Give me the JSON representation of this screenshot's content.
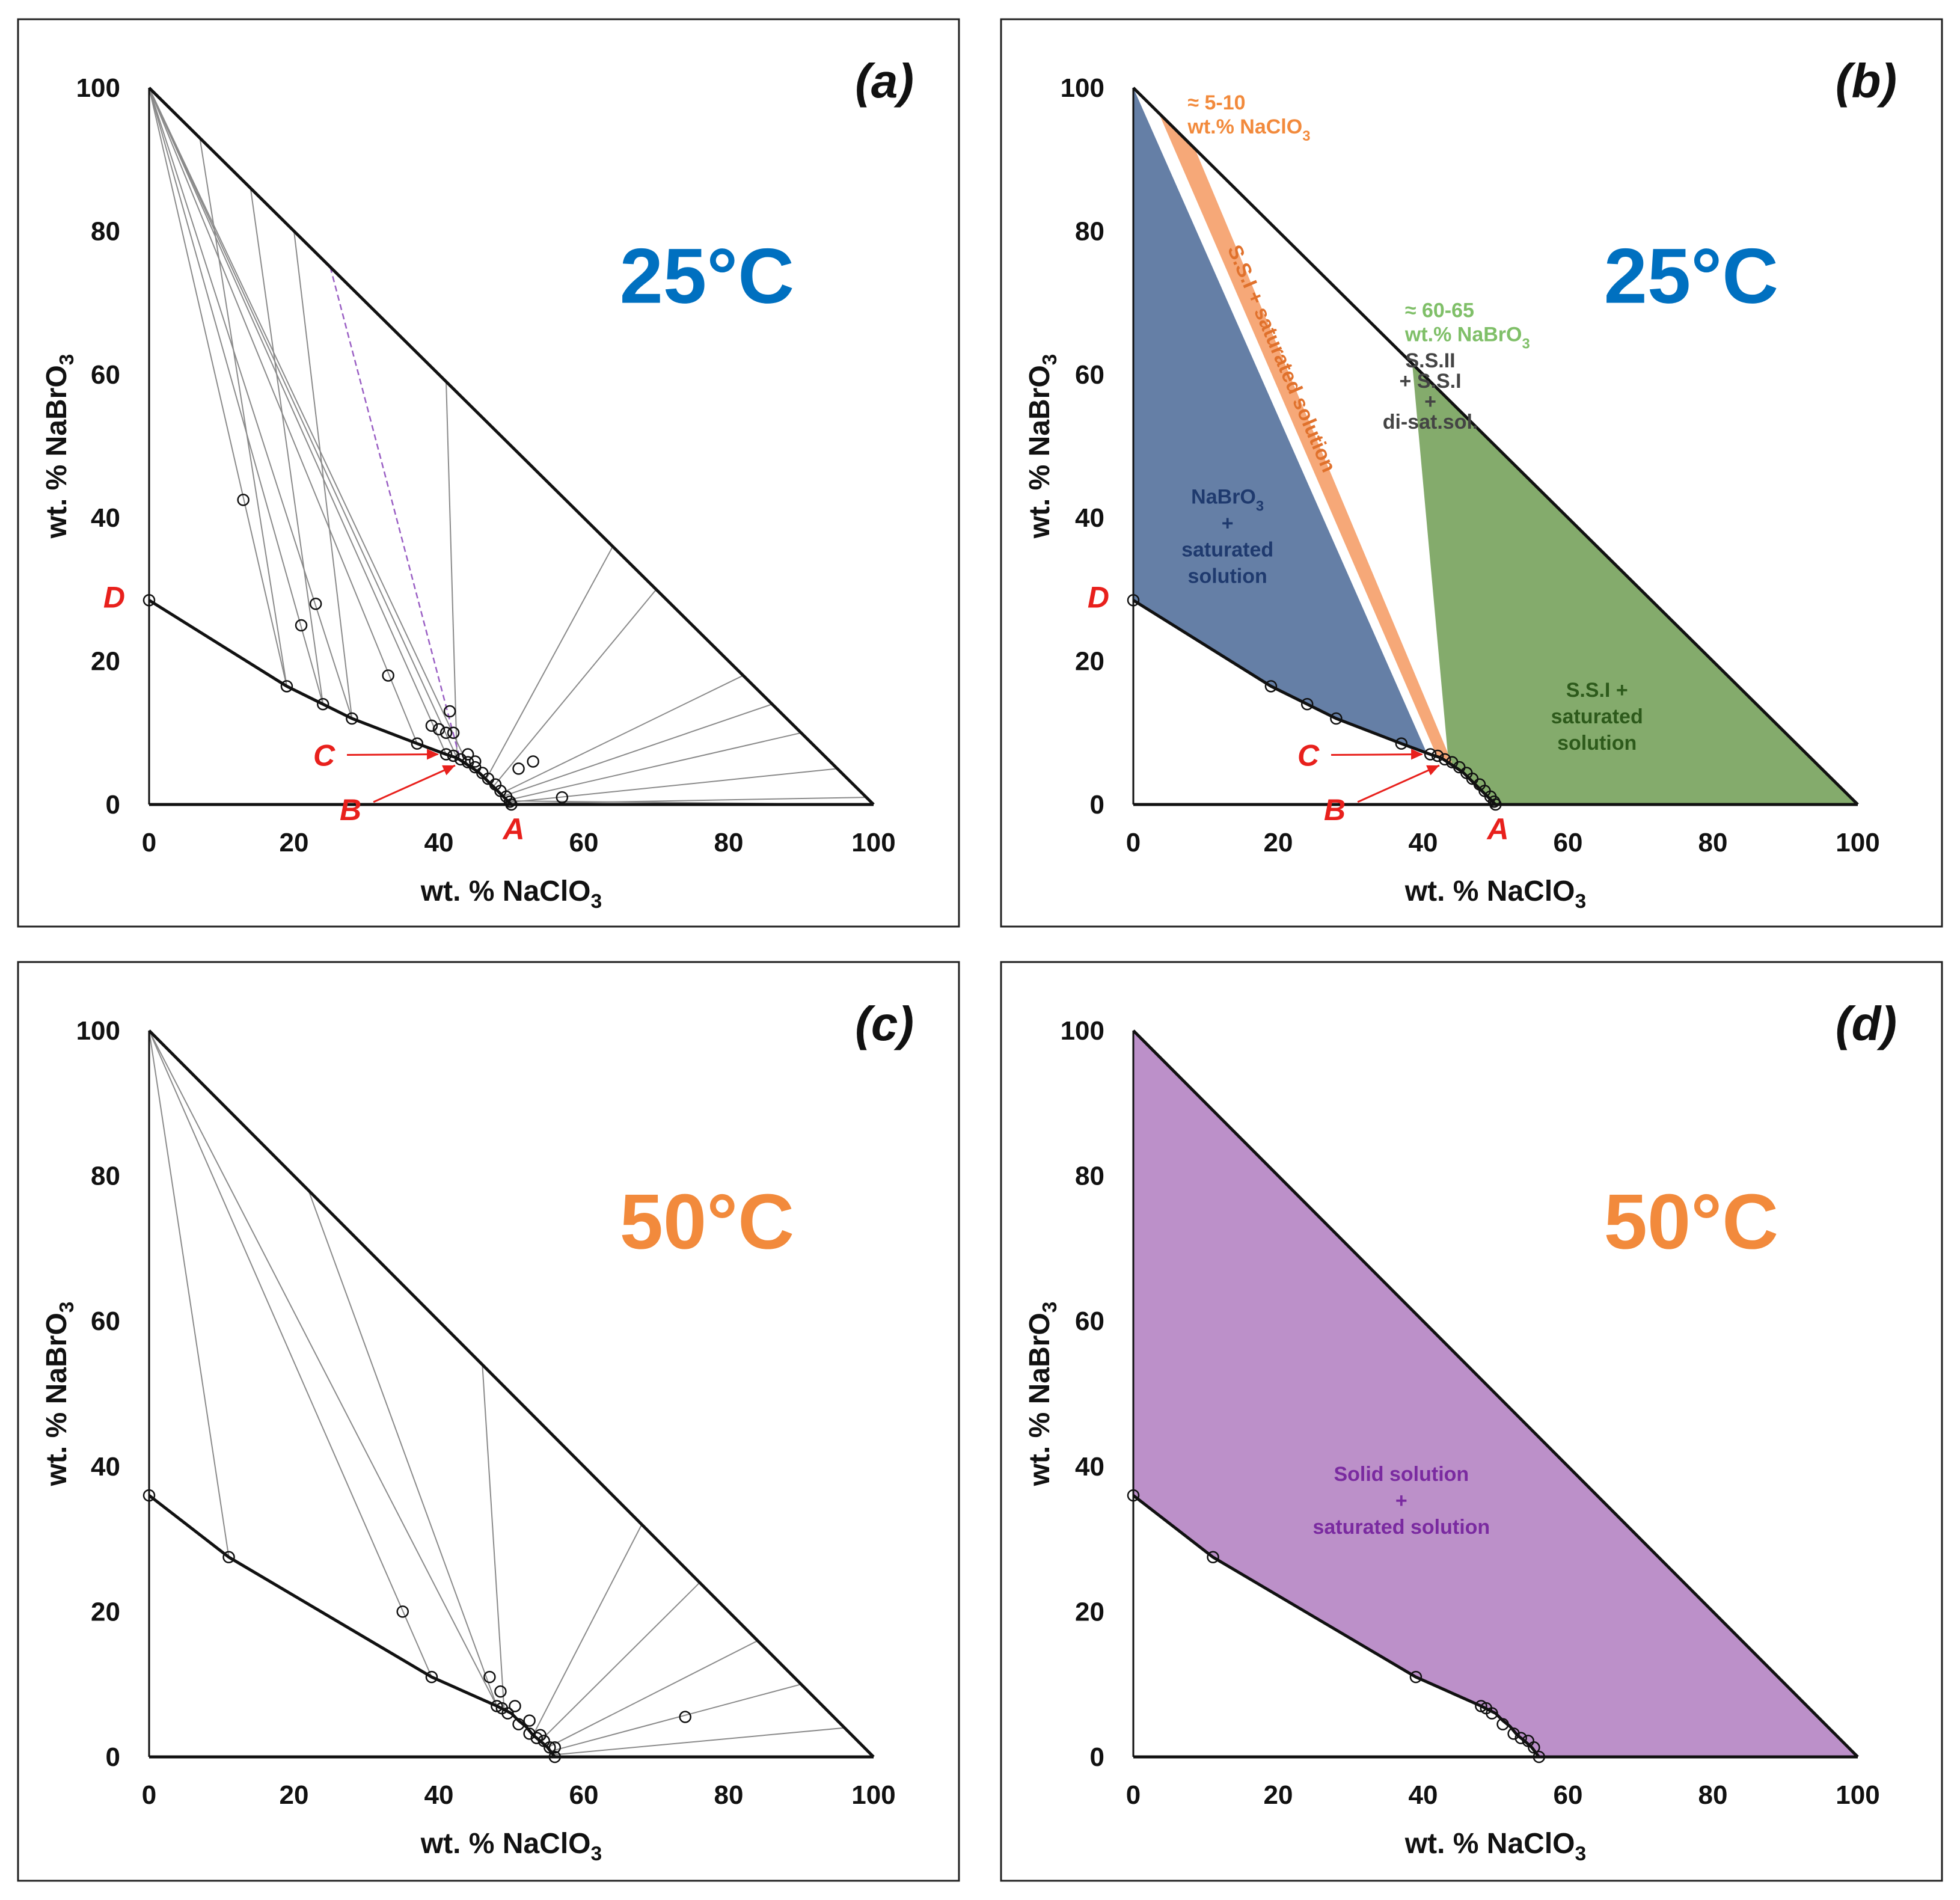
{
  "colors": {
    "blue_temp": "#0070c0",
    "orange_temp": "#f28a3c",
    "navy_region": "#4a6896",
    "orange_band": "#f6a878",
    "green_region": "#6e9c52",
    "purple_region": "#b07dc0",
    "purple_tie": "#9a5fc4",
    "red_label": "#e8201c",
    "green_note": "#7fbf68",
    "orange_note": "#f28a3c",
    "navy_text": "#1f3a6e",
    "green_text": "#2d5a1b",
    "purple_text": "#7a2aa0"
  },
  "chart_data": [
    {
      "id": "a",
      "type": "scatter",
      "tag": "(a)",
      "temperature": "25°C",
      "xlabel": "wt. % NaClO",
      "xlabel_sub": "3",
      "ylabel": "wt. % NaBrO",
      "ylabel_sub": "3",
      "xlim": [
        0,
        100
      ],
      "ylim": [
        0,
        100
      ],
      "xticks": [
        "0",
        "20",
        "40",
        "60",
        "80",
        "100"
      ],
      "yticks": [
        "0",
        "20",
        "40",
        "60",
        "80",
        "100"
      ],
      "solubility_curve": [
        [
          0,
          28.5
        ],
        [
          19,
          16.5
        ],
        [
          24,
          14
        ],
        [
          28,
          12
        ],
        [
          37,
          8.5
        ],
        [
          41,
          7
        ],
        [
          42.5,
          6.5
        ],
        [
          44,
          5.5
        ],
        [
          45.5,
          4.5
        ],
        [
          46.5,
          3.5
        ],
        [
          47.5,
          2.5
        ],
        [
          48.5,
          1.5
        ],
        [
          49.5,
          0.5
        ],
        [
          50,
          0
        ]
      ],
      "curve_points": [
        [
          0,
          28.5
        ],
        [
          19,
          16.5
        ],
        [
          24,
          14
        ],
        [
          28,
          12
        ],
        [
          37,
          8.5
        ],
        [
          41,
          7
        ],
        [
          42,
          6.8
        ],
        [
          43,
          6.3
        ],
        [
          44,
          5.9
        ],
        [
          45,
          5.2
        ],
        [
          46,
          4.4
        ],
        [
          46.8,
          3.6
        ],
        [
          47.8,
          2.8
        ],
        [
          48.5,
          1.9
        ],
        [
          49.3,
          1.1
        ],
        [
          49.8,
          0.4
        ],
        [
          50,
          0
        ]
      ],
      "solid_points": [
        [
          13,
          42.5
        ],
        [
          21,
          25
        ],
        [
          23,
          28
        ],
        [
          33,
          18
        ],
        [
          39,
          11
        ],
        [
          40,
          10.5
        ],
        [
          41,
          10
        ],
        [
          41.5,
          13
        ],
        [
          42,
          10
        ],
        [
          44,
          7
        ],
        [
          45,
          6
        ],
        [
          51,
          5
        ],
        [
          53,
          6
        ],
        [
          57,
          1
        ]
      ],
      "tie_lines": [
        [
          [
            0,
            100
          ],
          [
            19,
            16.5
          ]
        ],
        [
          [
            0,
            100
          ],
          [
            24,
            14
          ]
        ],
        [
          [
            0,
            100
          ],
          [
            28,
            12
          ]
        ],
        [
          [
            0,
            100
          ],
          [
            37,
            8.5
          ]
        ],
        [
          [
            0,
            100
          ],
          [
            41,
            7
          ]
        ],
        [
          [
            0,
            100
          ],
          [
            42.5,
            6.5
          ]
        ],
        [
          [
            0,
            100
          ],
          [
            44,
            5.5
          ]
        ],
        [
          [
            7,
            93
          ],
          [
            19,
            16.5
          ]
        ],
        [
          [
            14,
            86
          ],
          [
            24,
            14
          ]
        ],
        [
          [
            20,
            80
          ],
          [
            28,
            12
          ]
        ],
        [
          [
            41,
            59
          ],
          [
            42.5,
            6.5
          ]
        ],
        [
          [
            64,
            36
          ],
          [
            46.5,
            3.5
          ]
        ],
        [
          [
            70,
            30
          ],
          [
            47.5,
            2.5
          ]
        ],
        [
          [
            82,
            18
          ],
          [
            48.5,
            1.5
          ]
        ],
        [
          [
            86,
            14
          ],
          [
            49,
            1.2
          ]
        ],
        [
          [
            90,
            10
          ],
          [
            49.5,
            0.6
          ]
        ],
        [
          [
            95,
            5
          ],
          [
            49.8,
            0.3
          ]
        ],
        [
          [
            99,
            1
          ],
          [
            50,
            0.1
          ]
        ],
        [
          [
            100,
            0
          ],
          [
            49.8,
            0.5
          ]
        ]
      ],
      "special_tie": [
        [
          25,
          75
        ],
        [
          43,
          6
        ]
      ],
      "labels": [
        {
          "text": "D",
          "at": [
            0,
            28.5
          ],
          "pos": "left"
        },
        {
          "text": "C",
          "at": [
            41,
            7
          ],
          "pos": "arrow-left"
        },
        {
          "text": "B",
          "at": [
            43,
            5.8
          ],
          "pos": "arrow-below"
        },
        {
          "text": "A",
          "at": [
            50,
            0
          ],
          "pos": "below"
        }
      ]
    },
    {
      "id": "b",
      "type": "scatter",
      "tag": "(b)",
      "temperature": "25°C",
      "xlabel": "wt. % NaClO",
      "xlabel_sub": "3",
      "ylabel": "wt. % NaBrO",
      "ylabel_sub": "3",
      "xlim": [
        0,
        100
      ],
      "ylim": [
        0,
        100
      ],
      "xticks": [
        "0",
        "20",
        "40",
        "60",
        "80",
        "100"
      ],
      "yticks": [
        "0",
        "20",
        "40",
        "60",
        "80",
        "100"
      ],
      "solubility_curve": [
        [
          0,
          28.5
        ],
        [
          19,
          16.5
        ],
        [
          24,
          14
        ],
        [
          28,
          12
        ],
        [
          37,
          8.5
        ],
        [
          41,
          7
        ],
        [
          42.5,
          6.5
        ],
        [
          44,
          5.5
        ],
        [
          45.5,
          4.5
        ],
        [
          46.5,
          3.5
        ],
        [
          47.5,
          2.5
        ],
        [
          48.5,
          1.5
        ],
        [
          49.5,
          0.5
        ],
        [
          50,
          0
        ]
      ],
      "curve_points": [
        [
          0,
          28.5
        ],
        [
          19,
          16.5
        ],
        [
          24,
          14
        ],
        [
          28,
          12
        ],
        [
          37,
          8.5
        ],
        [
          41,
          7
        ],
        [
          42,
          6.8
        ],
        [
          43,
          6.3
        ],
        [
          44,
          5.9
        ],
        [
          45,
          5.2
        ],
        [
          46,
          4.4
        ],
        [
          46.8,
          3.6
        ],
        [
          47.8,
          2.8
        ],
        [
          48.5,
          1.9
        ],
        [
          49.3,
          1.1
        ],
        [
          49.8,
          0.4
        ],
        [
          50,
          0
        ]
      ],
      "regions": [
        {
          "name": "NaBrO3 + saturated solution",
          "lines": [
            "NaBrO",
            "+",
            "saturated",
            "solution"
          ],
          "sub_on_first": "3",
          "color_key": "navy_region",
          "text_color_key": "navy_text",
          "polygon": [
            [
              0,
              100
            ],
            [
              0,
              28.5
            ],
            [
              19,
              16.5
            ],
            [
              24,
              14
            ],
            [
              28,
              12
            ],
            [
              37,
              8.5
            ],
            [
              40.5,
              7.2
            ]
          ],
          "label_at": [
            13,
            42
          ]
        },
        {
          "name": "S.S.I + saturated solution",
          "lines": [
            "S.S.I +",
            "saturated",
            "solution"
          ],
          "color_key": "green_region",
          "text_color_key": "green_text",
          "polygon": [
            [
              38.5,
              61.5
            ],
            [
              100,
              0
            ],
            [
              50,
              0
            ],
            [
              49.5,
              0.5
            ],
            [
              48.5,
              1.5
            ],
            [
              47.5,
              2.5
            ],
            [
              46.5,
              3.5
            ],
            [
              45.5,
              4.5
            ],
            [
              44,
              5.5
            ],
            [
              43.5,
              6
            ]
          ],
          "label_at": [
            64,
            15
          ]
        }
      ],
      "band": {
        "name": "S.S.I + saturated solution",
        "label": "S.S.I + saturated solution",
        "color_key": "orange_band",
        "polygon": [
          [
            3.5,
            96.5
          ],
          [
            8.5,
            91.5
          ],
          [
            44,
            5.8
          ],
          [
            42,
            6.5
          ]
        ]
      },
      "middle_region_label": [
        "S.S.II",
        "+ S.S.I",
        "+",
        "di-sat.sol."
      ],
      "notes": [
        {
          "lines": [
            "≈ 5-10",
            "wt.% NaClO"
          ],
          "sub": "3",
          "color_key": "orange_note",
          "at": [
            7.5,
            97
          ]
        },
        {
          "lines": [
            "≈ 60-65",
            "wt.% NaBrO"
          ],
          "sub": "3",
          "color_key": "green_note",
          "at": [
            37.5,
            68
          ]
        }
      ],
      "labels": [
        {
          "text": "D",
          "at": [
            0,
            28.5
          ],
          "pos": "left"
        },
        {
          "text": "C",
          "at": [
            41,
            7
          ],
          "pos": "arrow-left"
        },
        {
          "text": "B",
          "at": [
            43,
            5.8
          ],
          "pos": "arrow-below"
        },
        {
          "text": "A",
          "at": [
            50,
            0
          ],
          "pos": "below"
        }
      ]
    },
    {
      "id": "c",
      "type": "scatter",
      "tag": "(c)",
      "temperature": "50°C",
      "xlabel": "wt. % NaClO",
      "xlabel_sub": "3",
      "ylabel": "wt. % NaBrO",
      "ylabel_sub": "3",
      "xlim": [
        0,
        100
      ],
      "ylim": [
        0,
        100
      ],
      "xticks": [
        "0",
        "20",
        "40",
        "60",
        "80",
        "100"
      ],
      "yticks": [
        "0",
        "20",
        "40",
        "60",
        "80",
        "100"
      ],
      "solubility_curve": [
        [
          0,
          36
        ],
        [
          11,
          27.5
        ],
        [
          39,
          11
        ],
        [
          48,
          7
        ],
        [
          49,
          6.5
        ],
        [
          50,
          6
        ],
        [
          51,
          5
        ],
        [
          52,
          4.2
        ],
        [
          53,
          3
        ],
        [
          54,
          2.2
        ],
        [
          55,
          1.3
        ],
        [
          56,
          0
        ]
      ],
      "curve_points": [
        [
          0,
          36
        ],
        [
          11,
          27.5
        ],
        [
          39,
          11
        ],
        [
          48,
          7
        ],
        [
          48.7,
          6.7
        ],
        [
          49.5,
          6
        ],
        [
          51,
          4.5
        ],
        [
          52.5,
          3.2
        ],
        [
          53.5,
          2.6
        ],
        [
          54.5,
          2.2
        ],
        [
          55.3,
          1.3
        ],
        [
          56,
          0
        ]
      ],
      "solid_points": [
        [
          35,
          20
        ],
        [
          47,
          11
        ],
        [
          48.5,
          9
        ],
        [
          50.5,
          7
        ],
        [
          52.5,
          5
        ],
        [
          54,
          3
        ],
        [
          56,
          1.3
        ],
        [
          74,
          5.5
        ]
      ],
      "tie_lines": [
        [
          [
            0,
            100
          ],
          [
            11,
            27.5
          ]
        ],
        [
          [
            0,
            100
          ],
          [
            39,
            11
          ]
        ],
        [
          [
            0,
            100
          ],
          [
            48,
            7
          ]
        ],
        [
          [
            22,
            78
          ],
          [
            48,
            7
          ]
        ],
        [
          [
            46,
            54
          ],
          [
            49,
            6.5
          ]
        ],
        [
          [
            68,
            32
          ],
          [
            53,
            3
          ]
        ],
        [
          [
            76,
            24
          ],
          [
            54,
            2.2
          ]
        ],
        [
          [
            84,
            16
          ],
          [
            55,
            1.3
          ]
        ],
        [
          [
            90,
            10
          ],
          [
            55.5,
            0.8
          ]
        ],
        [
          [
            96,
            4
          ],
          [
            56,
            0.3
          ]
        ]
      ],
      "labels": []
    },
    {
      "id": "d",
      "type": "scatter",
      "tag": "(d)",
      "temperature": "50°C",
      "xlabel": "wt. % NaClO",
      "xlabel_sub": "3",
      "ylabel": "wt. % NaBrO",
      "ylabel_sub": "3",
      "xlim": [
        0,
        100
      ],
      "ylim": [
        0,
        100
      ],
      "xticks": [
        "0",
        "20",
        "40",
        "60",
        "80",
        "100"
      ],
      "yticks": [
        "0",
        "20",
        "40",
        "60",
        "80",
        "100"
      ],
      "solubility_curve": [
        [
          0,
          36
        ],
        [
          11,
          27.5
        ],
        [
          39,
          11
        ],
        [
          48,
          7
        ],
        [
          49,
          6.5
        ],
        [
          50,
          6
        ],
        [
          51,
          5
        ],
        [
          52,
          4.2
        ],
        [
          53,
          3
        ],
        [
          54,
          2.2
        ],
        [
          55,
          1.3
        ],
        [
          56,
          0
        ]
      ],
      "curve_points": [
        [
          0,
          36
        ],
        [
          11,
          27.5
        ],
        [
          39,
          11
        ],
        [
          48,
          7
        ],
        [
          48.7,
          6.7
        ],
        [
          49.5,
          6
        ],
        [
          51,
          4.5
        ],
        [
          52.5,
          3.2
        ],
        [
          53.5,
          2.6
        ],
        [
          54.5,
          2.2
        ],
        [
          55.3,
          1.3
        ],
        [
          56,
          0
        ]
      ],
      "regions": [
        {
          "name": "Solid solution + saturated solution",
          "lines": [
            "Solid solution",
            "+",
            "saturated solution"
          ],
          "color_key": "purple_region",
          "text_color_key": "purple_text",
          "polygon": [
            [
              0,
              100
            ],
            [
              100,
              0
            ],
            [
              56,
              0
            ],
            [
              55,
              1.3
            ],
            [
              54,
              2.2
            ],
            [
              53,
              3
            ],
            [
              52,
              4.2
            ],
            [
              51,
              5
            ],
            [
              50,
              6
            ],
            [
              49,
              6.5
            ],
            [
              48,
              7
            ],
            [
              39,
              11
            ],
            [
              11,
              27.5
            ],
            [
              0,
              36
            ]
          ],
          "label_at": [
            37,
            38
          ]
        }
      ],
      "labels": []
    }
  ]
}
